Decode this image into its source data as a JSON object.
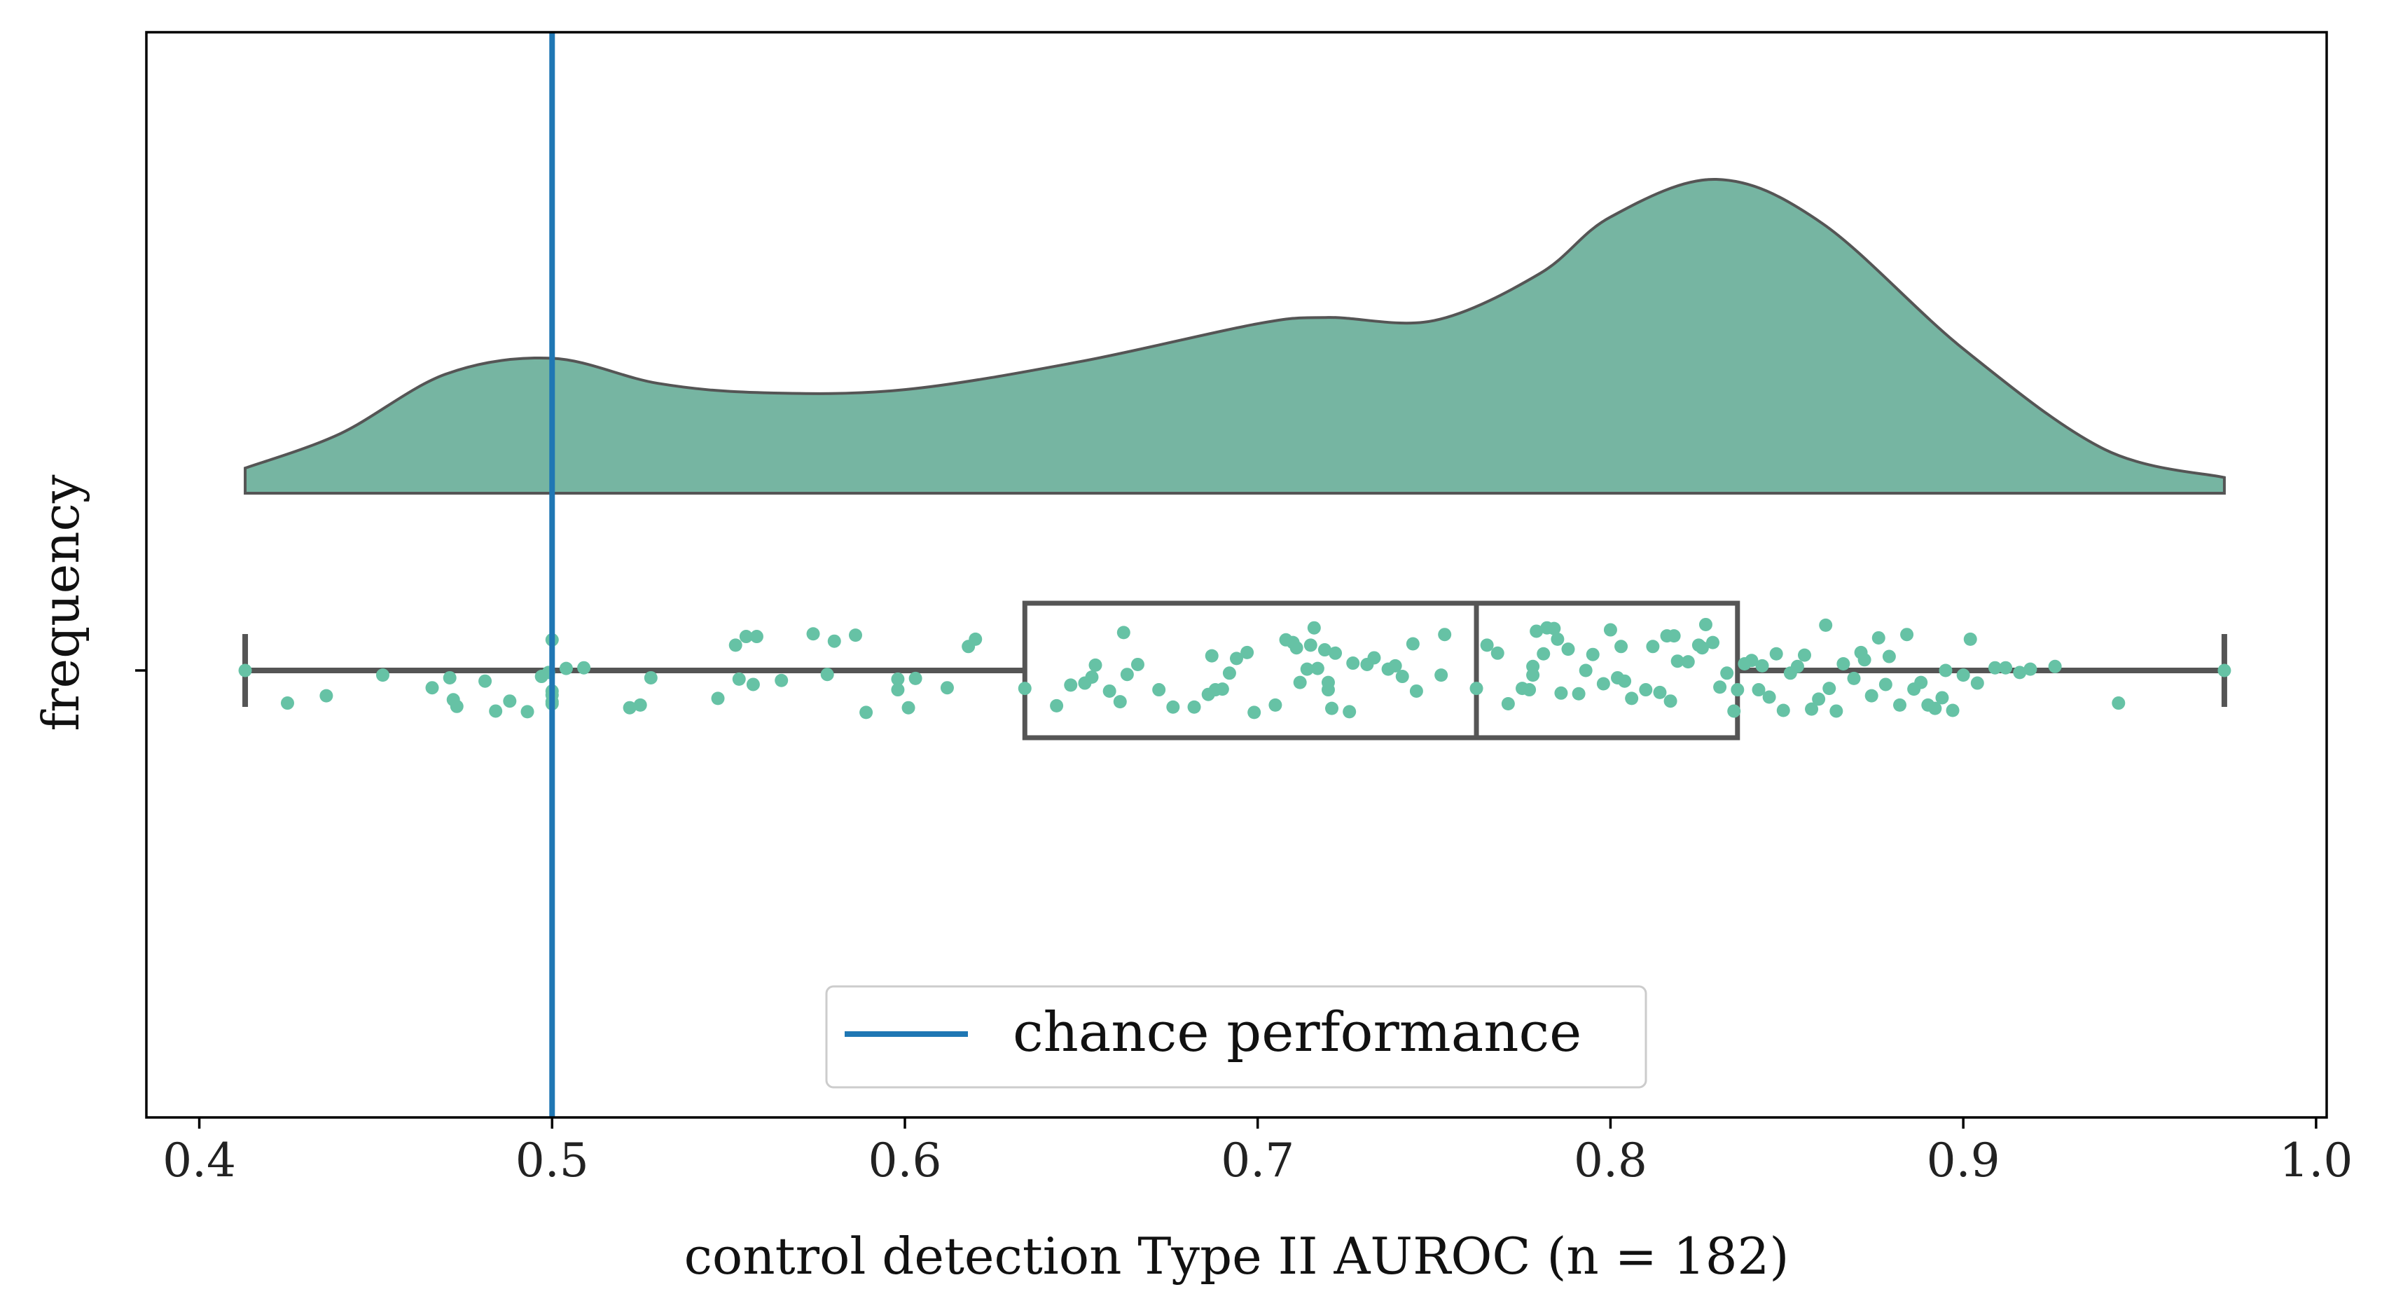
{
  "chart_data": {
    "type": "raincloud",
    "xlabel": "control detection Type II AUROC (n = 182)",
    "ylabel": "frequency",
    "xlim": [
      0.385,
      1.003
    ],
    "x_ticks": [
      0.4,
      0.5,
      0.6,
      0.7,
      0.8,
      0.9,
      1.0
    ],
    "x_tick_labels": [
      "0.4",
      "0.5",
      "0.6",
      "0.7",
      "0.8",
      "0.9",
      "1.0"
    ],
    "grid": false,
    "n": 182,
    "colors": {
      "density": "#76b5a2",
      "points": "#66c2a5",
      "box": "#555555",
      "chance": "#1f77b4"
    },
    "density": {
      "x": [
        0.413,
        0.44,
        0.47,
        0.5,
        0.53,
        0.56,
        0.6,
        0.65,
        0.7,
        0.72,
        0.75,
        0.78,
        0.8,
        0.83,
        0.86,
        0.9,
        0.94,
        0.974
      ],
      "y": [
        0.08,
        0.19,
        0.38,
        0.43,
        0.35,
        0.32,
        0.33,
        0.42,
        0.54,
        0.56,
        0.55,
        0.7,
        0.88,
        1.0,
        0.86,
        0.46,
        0.14,
        0.05
      ]
    },
    "boxplot": {
      "min": 0.413,
      "q1": 0.634,
      "median": 0.762,
      "q3": 0.836,
      "max": 0.974
    },
    "points": [
      {
        "x": 0.413,
        "j": 0.0
      },
      {
        "x": 0.425,
        "j": 0.49
      },
      {
        "x": 0.436,
        "j": 0.38
      },
      {
        "x": 0.452,
        "j": 0.07
      },
      {
        "x": 0.466,
        "j": 0.26
      },
      {
        "x": 0.471,
        "j": 0.11
      },
      {
        "x": 0.472,
        "j": 0.44
      },
      {
        "x": 0.473,
        "j": 0.54
      },
      {
        "x": 0.481,
        "j": 0.16
      },
      {
        "x": 0.484,
        "j": 0.61
      },
      {
        "x": 0.488,
        "j": 0.46
      },
      {
        "x": 0.493,
        "j": 0.62
      },
      {
        "x": 0.497,
        "j": 0.09
      },
      {
        "x": 0.499,
        "j": 0.03
      },
      {
        "x": 0.5,
        "j": -0.46
      },
      {
        "x": 0.5,
        "j": 0.31
      },
      {
        "x": 0.5,
        "j": 0.37
      },
      {
        "x": 0.5,
        "j": 0.47
      },
      {
        "x": 0.5,
        "j": 0.5
      },
      {
        "x": 0.504,
        "j": -0.03
      },
      {
        "x": 0.509,
        "j": -0.04
      },
      {
        "x": 0.522,
        "j": 0.56
      },
      {
        "x": 0.525,
        "j": 0.52
      },
      {
        "x": 0.528,
        "j": 0.11
      },
      {
        "x": 0.547,
        "j": 0.42
      },
      {
        "x": 0.552,
        "j": -0.38
      },
      {
        "x": 0.553,
        "j": 0.13
      },
      {
        "x": 0.555,
        "j": -0.51
      },
      {
        "x": 0.557,
        "j": 0.21
      },
      {
        "x": 0.558,
        "j": -0.51
      },
      {
        "x": 0.565,
        "j": 0.15
      },
      {
        "x": 0.574,
        "j": -0.55
      },
      {
        "x": 0.578,
        "j": 0.06
      },
      {
        "x": 0.58,
        "j": -0.44
      },
      {
        "x": 0.586,
        "j": -0.53
      },
      {
        "x": 0.589,
        "j": 0.63
      },
      {
        "x": 0.598,
        "j": 0.13
      },
      {
        "x": 0.598,
        "j": 0.29
      },
      {
        "x": 0.601,
        "j": 0.56
      },
      {
        "x": 0.603,
        "j": 0.12
      },
      {
        "x": 0.612,
        "j": 0.26
      },
      {
        "x": 0.618,
        "j": -0.36
      },
      {
        "x": 0.62,
        "j": -0.47
      },
      {
        "x": 0.634,
        "j": 0.27
      },
      {
        "x": 0.643,
        "j": 0.53
      },
      {
        "x": 0.647,
        "j": 0.22
      },
      {
        "x": 0.651,
        "j": 0.19
      },
      {
        "x": 0.653,
        "j": 0.1
      },
      {
        "x": 0.654,
        "j": -0.08
      },
      {
        "x": 0.658,
        "j": 0.31
      },
      {
        "x": 0.661,
        "j": 0.47
      },
      {
        "x": 0.662,
        "j": -0.57
      },
      {
        "x": 0.663,
        "j": 0.06
      },
      {
        "x": 0.666,
        "j": -0.09
      },
      {
        "x": 0.672,
        "j": 0.29
      },
      {
        "x": 0.676,
        "j": 0.55
      },
      {
        "x": 0.682,
        "j": 0.55
      },
      {
        "x": 0.686,
        "j": 0.36
      },
      {
        "x": 0.687,
        "j": -0.22
      },
      {
        "x": 0.688,
        "j": 0.29
      },
      {
        "x": 0.69,
        "j": 0.28
      },
      {
        "x": 0.692,
        "j": 0.04
      },
      {
        "x": 0.694,
        "j": -0.18
      },
      {
        "x": 0.697,
        "j": -0.27
      },
      {
        "x": 0.699,
        "j": 0.63
      },
      {
        "x": 0.705,
        "j": 0.52
      },
      {
        "x": 0.708,
        "j": -0.46
      },
      {
        "x": 0.71,
        "j": -0.42
      },
      {
        "x": 0.711,
        "j": -0.34
      },
      {
        "x": 0.712,
        "j": 0.18
      },
      {
        "x": 0.714,
        "j": -0.02
      },
      {
        "x": 0.715,
        "j": -0.38
      },
      {
        "x": 0.716,
        "j": -0.64
      },
      {
        "x": 0.717,
        "j": -0.03
      },
      {
        "x": 0.719,
        "j": -0.31
      },
      {
        "x": 0.72,
        "j": 0.18
      },
      {
        "x": 0.72,
        "j": 0.29
      },
      {
        "x": 0.721,
        "j": 0.57
      },
      {
        "x": 0.722,
        "j": -0.26
      },
      {
        "x": 0.726,
        "j": 0.62
      },
      {
        "x": 0.727,
        "j": -0.11
      },
      {
        "x": 0.731,
        "j": -0.09
      },
      {
        "x": 0.733,
        "j": -0.19
      },
      {
        "x": 0.737,
        "j": -0.02
      },
      {
        "x": 0.739,
        "j": -0.07
      },
      {
        "x": 0.741,
        "j": 0.09
      },
      {
        "x": 0.744,
        "j": -0.4
      },
      {
        "x": 0.745,
        "j": 0.31
      },
      {
        "x": 0.752,
        "j": 0.07
      },
      {
        "x": 0.753,
        "j": -0.54
      },
      {
        "x": 0.762,
        "j": 0.27
      },
      {
        "x": 0.765,
        "j": -0.38
      },
      {
        "x": 0.768,
        "j": -0.26
      },
      {
        "x": 0.771,
        "j": 0.5
      },
      {
        "x": 0.775,
        "j": 0.27
      },
      {
        "x": 0.777,
        "j": 0.29
      },
      {
        "x": 0.778,
        "j": 0.07
      },
      {
        "x": 0.778,
        "j": -0.06
      },
      {
        "x": 0.779,
        "j": -0.59
      },
      {
        "x": 0.781,
        "j": -0.25
      },
      {
        "x": 0.782,
        "j": -0.64
      },
      {
        "x": 0.784,
        "j": -0.63
      },
      {
        "x": 0.785,
        "j": -0.47
      },
      {
        "x": 0.786,
        "j": 0.34
      },
      {
        "x": 0.788,
        "j": -0.32
      },
      {
        "x": 0.791,
        "j": 0.35
      },
      {
        "x": 0.793,
        "j": 0.0
      },
      {
        "x": 0.795,
        "j": -0.24
      },
      {
        "x": 0.798,
        "j": 0.2
      },
      {
        "x": 0.8,
        "j": -0.61
      },
      {
        "x": 0.802,
        "j": 0.11
      },
      {
        "x": 0.803,
        "j": -0.36
      },
      {
        "x": 0.804,
        "j": 0.16
      },
      {
        "x": 0.806,
        "j": 0.42
      },
      {
        "x": 0.81,
        "j": 0.29
      },
      {
        "x": 0.812,
        "j": -0.36
      },
      {
        "x": 0.814,
        "j": 0.33
      },
      {
        "x": 0.816,
        "j": -0.52
      },
      {
        "x": 0.817,
        "j": 0.46
      },
      {
        "x": 0.818,
        "j": -0.52
      },
      {
        "x": 0.819,
        "j": -0.14
      },
      {
        "x": 0.822,
        "j": -0.13
      },
      {
        "x": 0.825,
        "j": -0.38
      },
      {
        "x": 0.826,
        "j": -0.34
      },
      {
        "x": 0.827,
        "j": -0.69
      },
      {
        "x": 0.829,
        "j": -0.42
      },
      {
        "x": 0.831,
        "j": 0.25
      },
      {
        "x": 0.833,
        "j": 0.04
      },
      {
        "x": 0.835,
        "j": 0.61
      },
      {
        "x": 0.836,
        "j": 0.29
      },
      {
        "x": 0.838,
        "j": -0.1
      },
      {
        "x": 0.84,
        "j": -0.15
      },
      {
        "x": 0.842,
        "j": 0.29
      },
      {
        "x": 0.843,
        "j": -0.07
      },
      {
        "x": 0.845,
        "j": 0.4
      },
      {
        "x": 0.847,
        "j": -0.25
      },
      {
        "x": 0.849,
        "j": 0.6
      },
      {
        "x": 0.851,
        "j": 0.04
      },
      {
        "x": 0.853,
        "j": -0.06
      },
      {
        "x": 0.855,
        "j": -0.23
      },
      {
        "x": 0.857,
        "j": 0.58
      },
      {
        "x": 0.859,
        "j": 0.43
      },
      {
        "x": 0.861,
        "j": -0.68
      },
      {
        "x": 0.862,
        "j": 0.27
      },
      {
        "x": 0.864,
        "j": 0.61
      },
      {
        "x": 0.866,
        "j": -0.1
      },
      {
        "x": 0.869,
        "j": 0.12
      },
      {
        "x": 0.871,
        "j": -0.27
      },
      {
        "x": 0.872,
        "j": -0.16
      },
      {
        "x": 0.874,
        "j": 0.38
      },
      {
        "x": 0.876,
        "j": -0.49
      },
      {
        "x": 0.878,
        "j": 0.21
      },
      {
        "x": 0.879,
        "j": -0.21
      },
      {
        "x": 0.882,
        "j": 0.52
      },
      {
        "x": 0.884,
        "j": -0.54
      },
      {
        "x": 0.886,
        "j": 0.28
      },
      {
        "x": 0.888,
        "j": 0.18
      },
      {
        "x": 0.89,
        "j": 0.52
      },
      {
        "x": 0.892,
        "j": 0.57
      },
      {
        "x": 0.894,
        "j": 0.41
      },
      {
        "x": 0.895,
        "j": 0.0
      },
      {
        "x": 0.897,
        "j": 0.6
      },
      {
        "x": 0.9,
        "j": 0.07
      },
      {
        "x": 0.902,
        "j": -0.47
      },
      {
        "x": 0.904,
        "j": 0.19
      },
      {
        "x": 0.909,
        "j": -0.04
      },
      {
        "x": 0.912,
        "j": -0.04
      },
      {
        "x": 0.916,
        "j": 0.03
      },
      {
        "x": 0.919,
        "j": -0.02
      },
      {
        "x": 0.926,
        "j": -0.06
      },
      {
        "x": 0.944,
        "j": 0.49
      },
      {
        "x": 0.974,
        "j": 0.0
      }
    ],
    "legend": {
      "entries": [
        {
          "label": "chance performance",
          "style": "line"
        }
      ],
      "placement": "lower-center"
    },
    "reference_lines": [
      {
        "x": 0.5,
        "label": "chance performance"
      }
    ]
  }
}
